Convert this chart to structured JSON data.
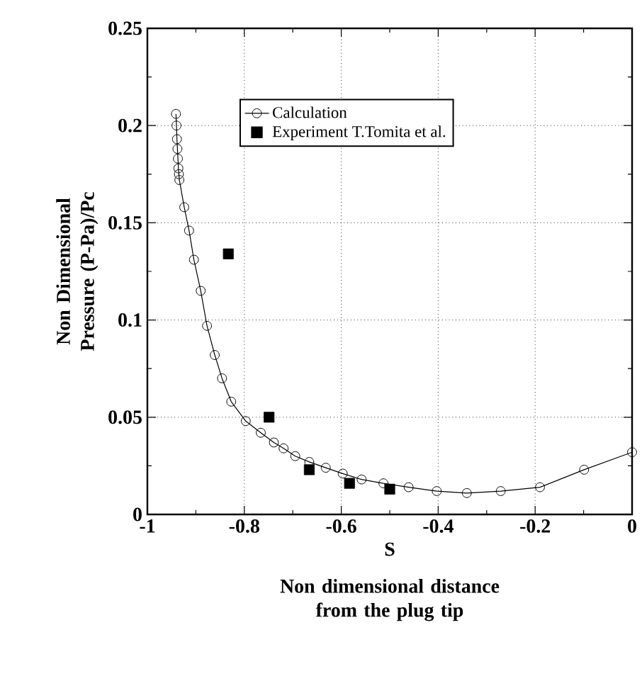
{
  "chart_data": {
    "type": "line",
    "xlabel": "S",
    "ylabel": "Non Dimensional Pressure (P-Pa)/Pc",
    "annotations": [
      "Non dimensional distance from the plug tip"
    ],
    "xlim": [
      -1,
      0
    ],
    "xticks": [
      -1,
      -0.8,
      -0.6,
      -0.4,
      -0.2,
      0
    ],
    "ylim": [
      0,
      0.25
    ],
    "yticks": [
      0,
      0.05,
      0.1,
      0.15,
      0.2,
      0.25
    ],
    "grid": true,
    "legend": "top",
    "series": [
      {
        "name": "Calculation",
        "color": "#000000",
        "marker": "circle",
        "line_style": "solid",
        "x": [
          -0.941,
          -0.94,
          -0.939,
          -0.938,
          -0.937,
          -0.936,
          -0.935,
          -0.934,
          -0.924,
          -0.914,
          -0.904,
          -0.89,
          -0.877,
          -0.861,
          -0.846,
          -0.827,
          -0.797,
          -0.766,
          -0.739,
          -0.719,
          -0.695,
          -0.666,
          -0.632,
          -0.597,
          -0.558,
          -0.513,
          -0.461,
          -0.403,
          -0.341,
          -0.271,
          -0.19,
          -0.099,
          0.0
        ],
        "values": [
          0.206,
          0.2,
          0.193,
          0.188,
          0.183,
          0.178,
          0.175,
          0.172,
          0.158,
          0.146,
          0.131,
          0.115,
          0.097,
          0.082,
          0.07,
          0.058,
          0.048,
          0.042,
          0.037,
          0.034,
          0.03,
          0.027,
          0.024,
          0.021,
          0.018,
          0.016,
          0.014,
          0.012,
          0.011,
          0.012,
          0.014,
          0.023,
          0.032
        ]
      },
      {
        "name": "Experiment T.Tomita et al.",
        "type": "scatter",
        "color": "#000000",
        "marker": "square",
        "x": [
          -0.833,
          -0.749,
          -0.666,
          -0.583,
          -0.5
        ],
        "values": [
          0.134,
          0.05,
          0.023,
          0.016,
          0.013
        ]
      }
    ]
  }
}
